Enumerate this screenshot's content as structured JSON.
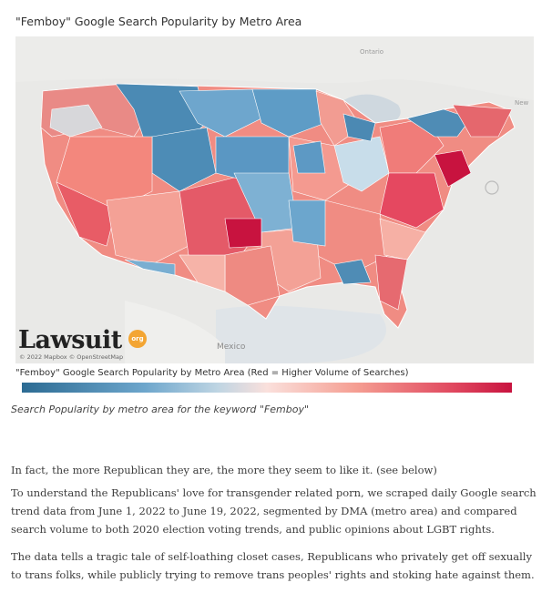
{
  "viz": {
    "title": "\"Femboy\" Google Search Popularity by Metro Area",
    "map_labels": {
      "ontario": "Ontario",
      "new": "New",
      "mexico": "Mexico"
    },
    "logo_text": "Lawsuit",
    "logo_badge": "org",
    "attribution": "© 2022 Mapbox © OpenStreetMap",
    "legend_title": "\"Femboy\" Google Search Popularity by Metro Area (Red = Higher Volume of Searches)",
    "colors": {
      "low": "#2c6b93",
      "mid": "#fae0dc",
      "high": "#c8133f",
      "basemap": "#e9e9e7"
    }
  },
  "caption": "Search Popularity by metro area for the keyword \"Femboy\"",
  "paragraphs": [
    "In fact, the more Republican they are, the more they seem to like it. (see below)",
    "To understand the Republicans' love for transgender related porn, we scraped daily Google search trend data from June 1, 2022 to June 19, 2022, segmented by DMA (metro area) and compared search volume to both 2020 election voting trends, and public opinions about LGBT rights.",
    "The data tells a tragic tale of self-loathing closet cases, Republicans who privately get off sexually to trans folks, while publicly trying to remove trans peoples' rights and stoking hate against them."
  ]
}
